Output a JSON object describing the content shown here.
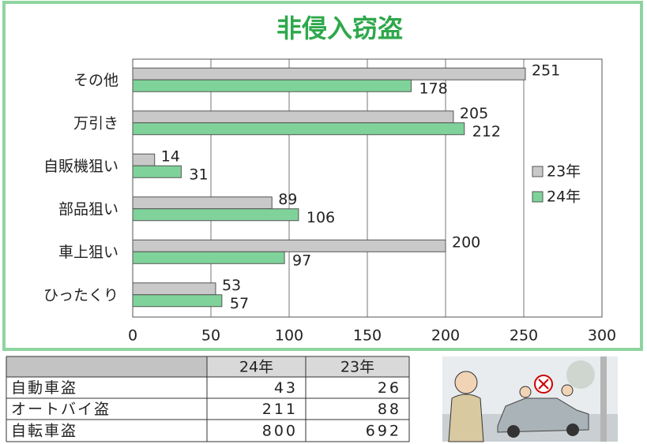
{
  "chart_data": {
    "type": "bar",
    "orientation": "horizontal",
    "title": "非侵入窃盗",
    "categories": [
      "その他",
      "万引き",
      "自販機狙い",
      "部品狙い",
      "車上狙い",
      "ひったくり"
    ],
    "series": [
      {
        "name": "23年",
        "color": "#c9c9c9",
        "values": [
          251,
          205,
          14,
          89,
          200,
          53
        ]
      },
      {
        "name": "24年",
        "color": "#7fd39a",
        "values": [
          178,
          212,
          31,
          106,
          97,
          57
        ]
      }
    ],
    "xlim": [
      0,
      300
    ],
    "xticks": [
      0,
      50,
      100,
      150,
      200,
      250,
      300
    ],
    "grid": true,
    "legend": "right"
  },
  "table": {
    "header": [
      "24年",
      "23年"
    ],
    "rows": [
      [
        "自動車盗",
        43,
        26
      ],
      [
        "オートバイ盗",
        211,
        88
      ],
      [
        "自転車盗",
        800,
        692
      ]
    ]
  }
}
